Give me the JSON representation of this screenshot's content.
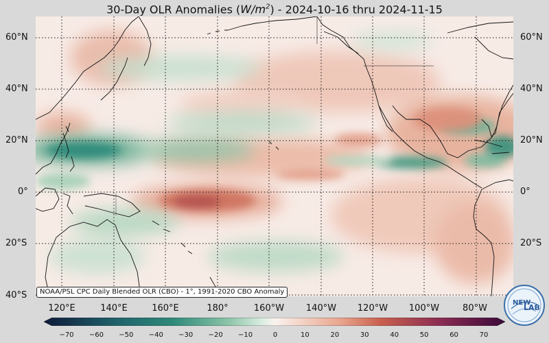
{
  "title": {
    "prefix": "30-Day OLR Anomalies (",
    "unit_base": "W/m",
    "unit_exp": "2",
    "suffix": ") - 2024-10-16 thru 2024-11-15"
  },
  "map": {
    "lat_labels_left": [
      "60°N",
      "40°N",
      "20°N",
      "0°",
      "20°S",
      "40°S"
    ],
    "lat_labels_right": [
      "60°N",
      "40°N",
      "20°N",
      "0°",
      "20°S"
    ],
    "lon_labels": [
      "120°E",
      "140°E",
      "160°E",
      "180°",
      "160°W",
      "140°W",
      "120°W",
      "100°W",
      "80°W"
    ],
    "source_note": "NOAA/PSL CPC Daily Blended OLR (CBO) - 1°, 1991-2020 CBO Anomaly"
  },
  "colorbar": {
    "ticks": [
      "−70",
      "−60",
      "−50",
      "−40",
      "−30",
      "−20",
      "−10",
      "0",
      "10",
      "20",
      "30",
      "40",
      "50",
      "60",
      "70"
    ],
    "colors": {
      "min": "#0e1b3a",
      "teal_dark": "#1f5f6a",
      "teal": "#2f8a7a",
      "green_light": "#b5d8c3",
      "neutral": "#faf3f0",
      "salmon": "#e9a78f",
      "red": "#c9604f",
      "maroon": "#8a2c52",
      "max": "#3a0a3a"
    }
  },
  "logo": {
    "text_line1": "NEW",
    "text_line2": "LAB"
  }
}
